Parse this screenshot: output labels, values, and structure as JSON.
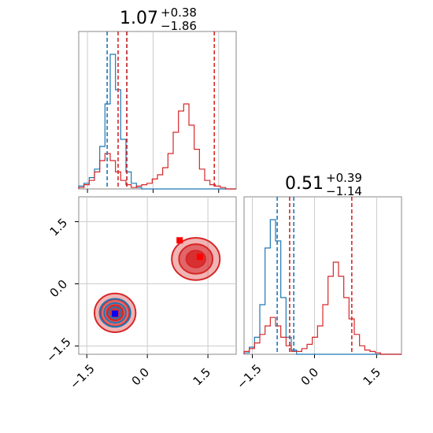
{
  "colors": {
    "blue": "#1f77b4",
    "red": "#d62728",
    "grid": "#cccccc",
    "axis": "#888888",
    "marker_red": "#ff0000",
    "marker_blue": "#0000ff"
  },
  "titles": {
    "p1": {
      "base": "1.07",
      "sup": "+0.38",
      "sub": "−1.86"
    },
    "p2": {
      "base": "0.51",
      "sup": "+0.39",
      "sub": "−1.14"
    }
  },
  "chart_data": [
    {
      "type": "histogram",
      "panel": "top-left",
      "xlim": [
        -1.7,
        1.9
      ],
      "grid": true,
      "series": [
        {
          "color": "blue",
          "values": [
            0.02,
            0.04,
            0.08,
            0.14,
            0.3,
            0.6,
            0.95,
            0.7,
            0.35,
            0.12,
            0.04,
            0.01,
            0,
            0,
            0,
            0,
            0,
            0,
            0,
            0,
            0,
            0,
            0,
            0,
            0,
            0,
            0,
            0,
            0,
            0
          ]
        },
        {
          "color": "red",
          "values": [
            0.01,
            0.03,
            0.06,
            0.12,
            0.2,
            0.25,
            0.2,
            0.12,
            0.06,
            0.03,
            0.01,
            0.02,
            0.03,
            0.04,
            0.07,
            0.1,
            0.15,
            0.25,
            0.4,
            0.55,
            0.6,
            0.45,
            0.28,
            0.14,
            0.06,
            0.03,
            0.02,
            0.01,
            0,
            0
          ]
        }
      ],
      "vlines": [
        {
          "x": -1.05,
          "color": "blue"
        },
        {
          "x": -0.6,
          "color": "blue"
        },
        {
          "x": -0.8,
          "color": "red"
        },
        {
          "x": -0.6,
          "color": "red"
        },
        {
          "x": 1.4,
          "color": "red"
        }
      ]
    },
    {
      "type": "scatter",
      "panel": "bottom-left",
      "xlim": [
        -1.7,
        2.2
      ],
      "ylim": [
        -1.7,
        2.1
      ],
      "xticks": [
        "−1.5",
        "0.0",
        "1.5"
      ],
      "yticks": [
        "−1.5",
        "0.0",
        "1.5"
      ],
      "grid": true,
      "clusters": [
        {
          "cx": 1.2,
          "cy": 0.6,
          "rx": 0.7,
          "ry": 0.6,
          "color": "red"
        },
        {
          "cx": -0.8,
          "cy": -0.7,
          "rx": 0.6,
          "ry": 0.55,
          "color": "red"
        },
        {
          "cx": -0.8,
          "cy": -0.7,
          "rx": 0.45,
          "ry": 0.4,
          "color": "blue"
        }
      ],
      "markers": [
        {
          "x": 0.8,
          "y": 1.05,
          "color": "marker_red"
        },
        {
          "x": 1.3,
          "y": 0.65,
          "color": "marker_red"
        },
        {
          "x": -0.8,
          "y": -0.72,
          "color": "marker_blue"
        }
      ]
    },
    {
      "type": "histogram",
      "panel": "bottom-right",
      "xlim": [
        -1.7,
        2.1
      ],
      "xticks": [
        "−1.5",
        "0.0",
        "1.5"
      ],
      "grid": true,
      "series": [
        {
          "color": "blue",
          "values": [
            0.01,
            0.05,
            0.12,
            0.35,
            0.75,
            0.95,
            0.8,
            0.4,
            0.12,
            0.03,
            0,
            0,
            0,
            0,
            0,
            0,
            0,
            0,
            0,
            0,
            0,
            0,
            0,
            0,
            0,
            0,
            0,
            0,
            0,
            0
          ]
        },
        {
          "color": "red",
          "values": [
            0.02,
            0.04,
            0.08,
            0.14,
            0.2,
            0.26,
            0.2,
            0.12,
            0.06,
            0.02,
            0.02,
            0.04,
            0.07,
            0.12,
            0.2,
            0.35,
            0.55,
            0.65,
            0.55,
            0.4,
            0.25,
            0.14,
            0.06,
            0.03,
            0.02,
            0.01,
            0,
            0,
            0,
            0
          ]
        }
      ],
      "vlines": [
        {
          "x": -0.9,
          "color": "blue"
        },
        {
          "x": -0.5,
          "color": "blue"
        },
        {
          "x": -0.6,
          "color": "red"
        },
        {
          "x": 0.9,
          "color": "red"
        }
      ]
    }
  ]
}
